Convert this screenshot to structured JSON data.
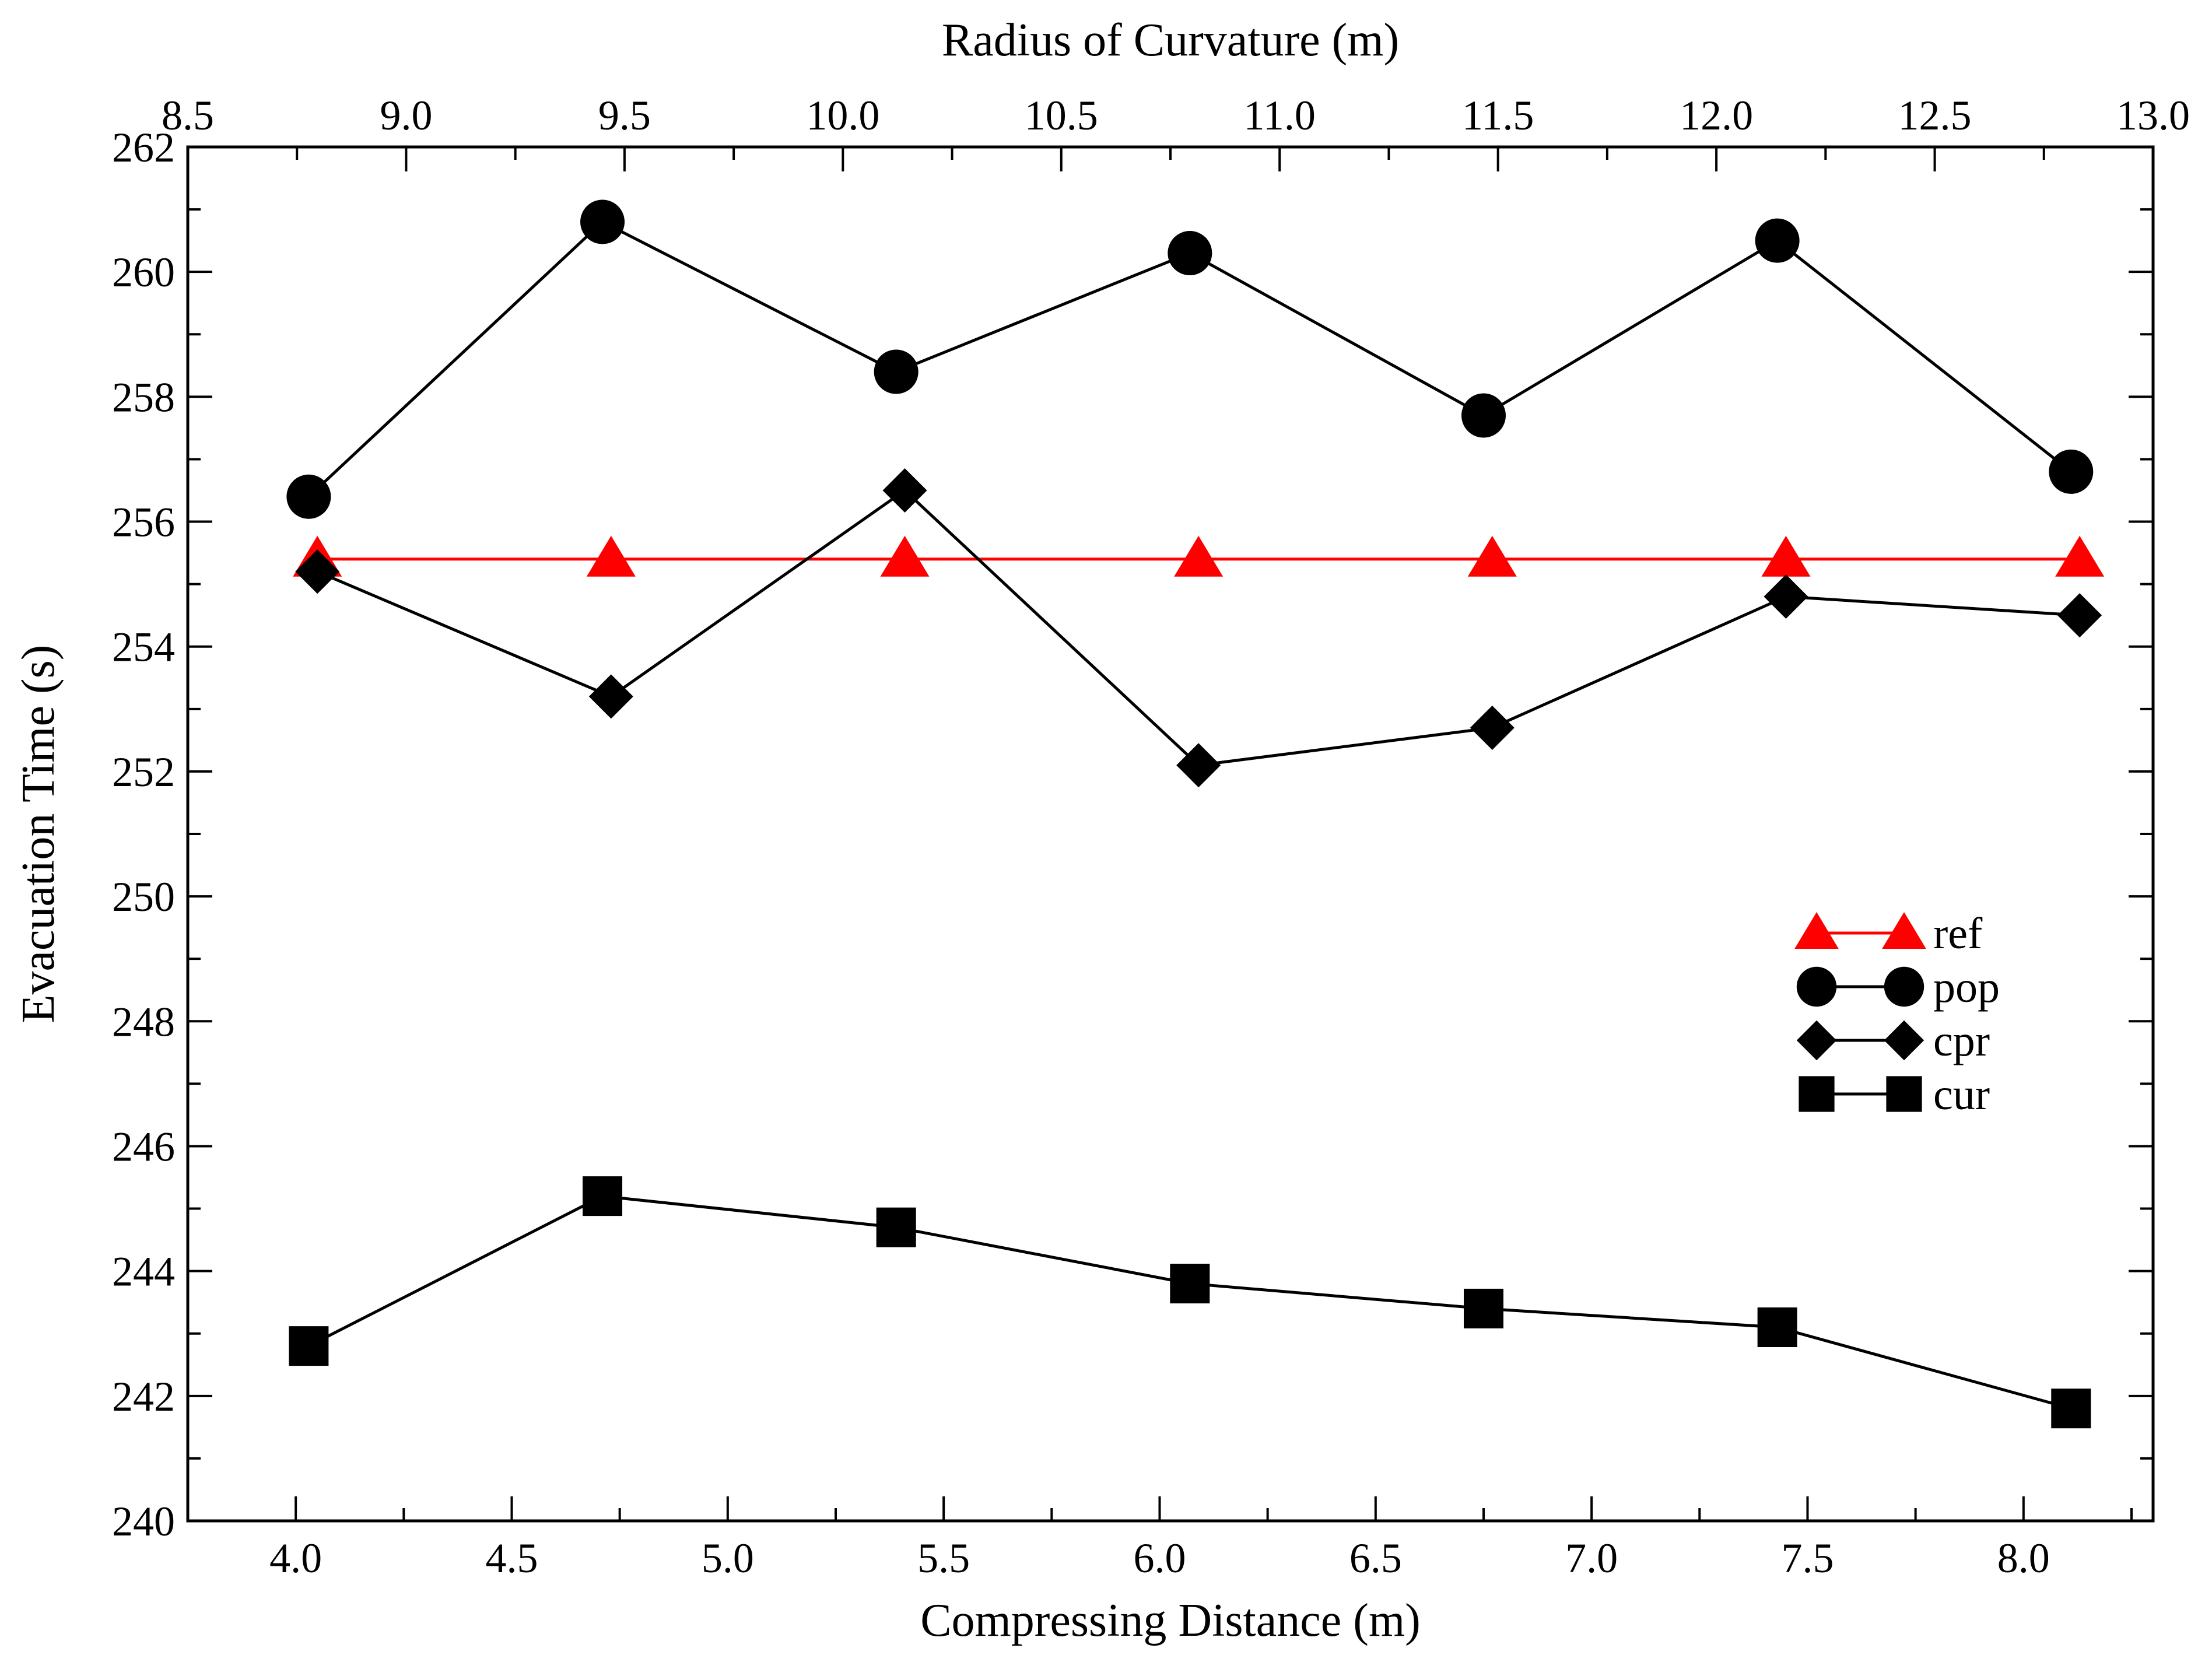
{
  "chart_data": {
    "type": "line",
    "title": "",
    "xlabel": "Compressing Distance (m)",
    "x2label": "Radius of Curvature (m)",
    "ylabel": "Evacuation Time (s)",
    "xlim": [
      3.75,
      8.3
    ],
    "x2lim": [
      8.5,
      13.0
    ],
    "ylim": [
      240,
      262
    ],
    "x_ticks": [
      "4.0",
      "4.5",
      "5.0",
      "5.5",
      "6.0",
      "6.5",
      "7.0",
      "7.5",
      "8.0"
    ],
    "x2_ticks": [
      "8.5",
      "9.0",
      "9.5",
      "10.0",
      "10.5",
      "11.0",
      "11.5",
      "12.0",
      "12.5",
      "13.0"
    ],
    "y_ticks": [
      "240",
      "242",
      "244",
      "246",
      "248",
      "250",
      "252",
      "254",
      "256",
      "258",
      "260",
      "262"
    ],
    "grid": false,
    "legend_position": "center-right",
    "series": [
      {
        "name": "ref",
        "color": "#ff0000",
        "marker": "triangle",
        "x": [
          4.05,
          4.73,
          5.41,
          6.09,
          6.77,
          7.45,
          8.13
        ],
        "y": [
          255.4,
          255.4,
          255.4,
          255.4,
          255.4,
          255.4,
          255.4
        ]
      },
      {
        "name": "pop",
        "color": "#000000",
        "marker": "circle",
        "x": [
          4.03,
          4.71,
          5.39,
          6.07,
          6.75,
          7.43,
          8.11
        ],
        "y": [
          256.4,
          260.8,
          258.4,
          260.3,
          257.7,
          260.5,
          256.8
        ]
      },
      {
        "name": "cpr",
        "color": "#000000",
        "marker": "diamond",
        "x": [
          4.05,
          4.73,
          5.41,
          6.09,
          6.77,
          7.45,
          8.13
        ],
        "y": [
          255.2,
          253.2,
          256.5,
          252.1,
          252.7,
          254.8,
          254.5
        ]
      },
      {
        "name": "cur",
        "color": "#000000",
        "marker": "square",
        "x": [
          4.03,
          4.71,
          5.39,
          6.07,
          6.75,
          7.43,
          8.11
        ],
        "y": [
          242.8,
          245.2,
          244.7,
          243.8,
          243.4,
          243.1,
          241.8
        ]
      }
    ]
  }
}
